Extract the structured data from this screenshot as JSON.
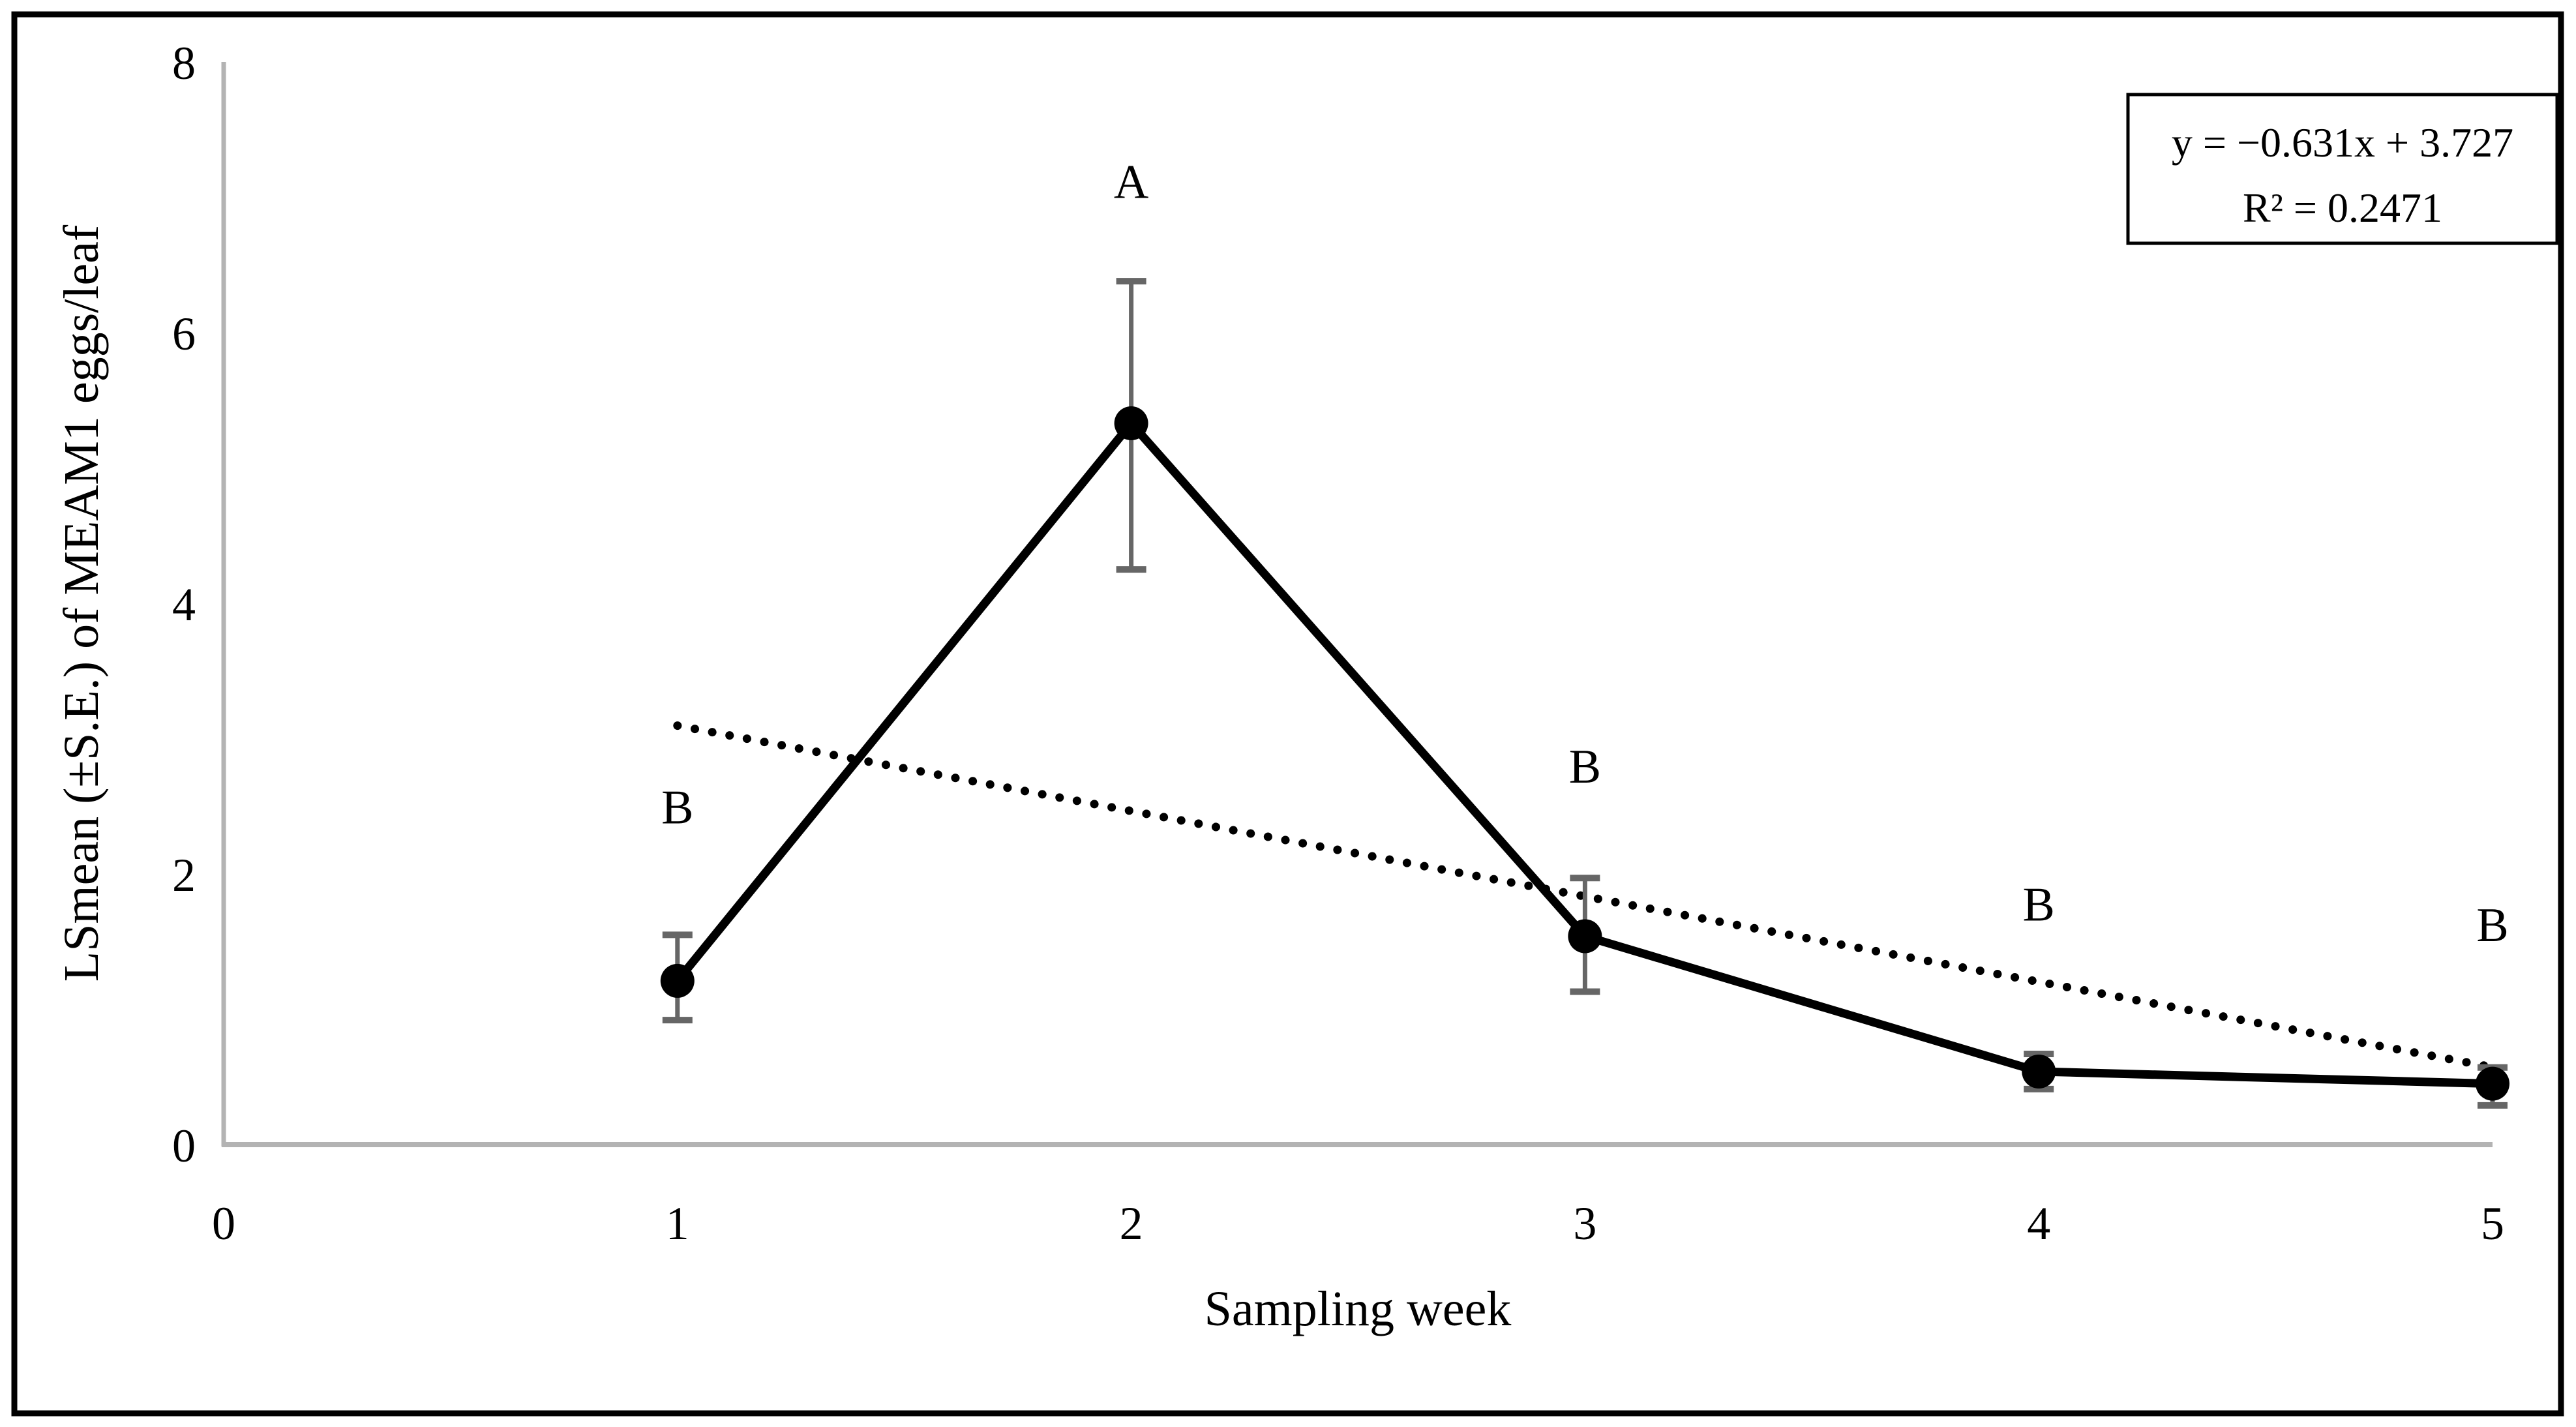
{
  "figure": {
    "background_color": "#ffffff",
    "frame_color": "#000000"
  },
  "chart_data": {
    "type": "line",
    "title": "",
    "xlabel": "Sampling week",
    "ylabel": "LSmean (±S.E.) of MEAM1 eggs/leaf",
    "xlim": [
      0,
      5
    ],
    "ylim": [
      0,
      8
    ],
    "x_ticks": [
      "0",
      "1",
      "2",
      "3",
      "4",
      "5"
    ],
    "y_ticks": [
      "0",
      "2",
      "4",
      "6",
      "8"
    ],
    "grid": "off",
    "legend": "none",
    "x": [
      1,
      2,
      3,
      4,
      5
    ],
    "series": [
      {
        "name": "LSmean of MEAM1 eggs per leaf",
        "values": [
          1.21,
          5.33,
          1.54,
          0.54,
          0.45
        ],
        "se_upper": [
          1.55,
          6.38,
          1.97,
          0.67,
          0.57
        ],
        "se_lower": [
          0.92,
          4.25,
          1.13,
          0.41,
          0.29
        ],
        "marker": "filled-circle",
        "line_style": "solid"
      }
    ],
    "significance_letters": [
      {
        "x": 1,
        "label": "B",
        "y": 2.5
      },
      {
        "x": 2,
        "label": "A",
        "y": 7.12
      },
      {
        "x": 3,
        "label": "B",
        "y": 2.8
      },
      {
        "x": 4,
        "label": "B",
        "y": 1.78
      },
      {
        "x": 5,
        "label": "B",
        "y": 1.63
      }
    ],
    "trendline": {
      "style": "dotted",
      "slope": -0.631,
      "intercept": 3.727,
      "x_start": 1,
      "x_end": 5
    },
    "equation_label": {
      "line1": "y = −0.631x + 3.727",
      "line2": "R² = 0.2471"
    },
    "colors": {
      "series": "#000000",
      "trendline": "#000000",
      "error_bar": "#666666",
      "axis_line": "#b3b3b3",
      "text": "#000000"
    }
  }
}
